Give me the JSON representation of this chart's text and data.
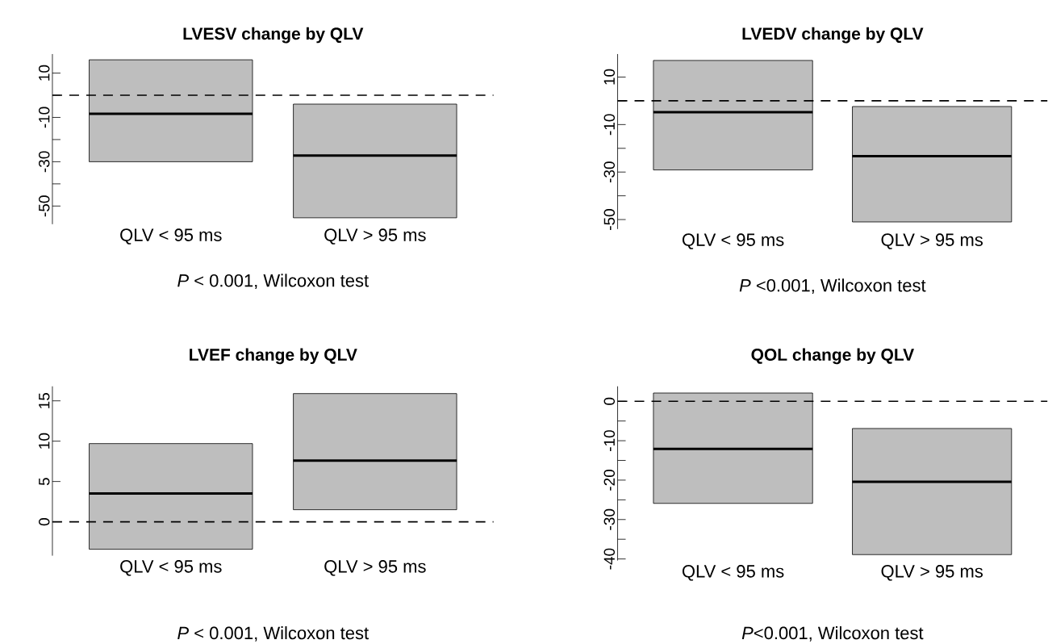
{
  "chart_data": [
    {
      "type": "box",
      "title": "LVESV change by QLV",
      "categories": [
        "QLV < 95 ms",
        "QLV > 95 ms"
      ],
      "color": "#bebebe",
      "boxes": [
        {
          "low": -30,
          "q1": -30,
          "median": -8.4,
          "q3": 16,
          "high": 16
        },
        {
          "low": -55.3,
          "q1": -55.3,
          "median": -27.2,
          "q3": -4,
          "high": -4
        }
      ],
      "ylim": [
        -58.2,
        18.6
      ],
      "yticks": [
        10,
        {
          "value": 0,
          "label": null
        },
        -10,
        {
          "value": -20,
          "label": null
        },
        -30,
        {
          "value": -40,
          "label": null
        },
        -50
      ],
      "ref_lines": [
        {
          "axis": "y",
          "value": 0,
          "line_style": "dashed"
        }
      ],
      "annotations": [
        "*P* < 0.001, Wilcoxon test"
      ]
    },
    {
      "type": "box",
      "title": "LVEDV change by QLV",
      "categories": [
        "QLV < 95 ms",
        "QLV > 95 ms"
      ],
      "color": "#bebebe",
      "boxes": [
        {
          "low": -29.1,
          "q1": -29.1,
          "median": -4.8,
          "q3": 17,
          "high": 17
        },
        {
          "low": -51,
          "q1": -51,
          "median": -23.3,
          "q3": -2.4,
          "high": -2.4
        }
      ],
      "ylim": [
        -54,
        19.7
      ],
      "yticks": [
        10,
        {
          "value": 0,
          "label": null
        },
        -10,
        {
          "value": -20,
          "label": null
        },
        -30,
        {
          "value": -40,
          "label": null
        },
        -50
      ],
      "ref_lines": [
        {
          "axis": "y",
          "value": 0,
          "line_style": "dashed"
        }
      ],
      "annotations": [
        "*P* <0.001, Wilcoxon test"
      ]
    },
    {
      "type": "box",
      "title": "LVEF change by QLV",
      "categories": [
        "QLV < 95 ms",
        "QLV > 95 ms"
      ],
      "color": "#bebebe",
      "boxes": [
        {
          "low": -3.4,
          "q1": -3.4,
          "median": 3.5,
          "q3": 9.7,
          "high": 9.7
        },
        {
          "low": 1.5,
          "q1": 1.5,
          "median": 7.6,
          "q3": 15.9,
          "high": 15.9
        }
      ],
      "ylim": [
        -4.2,
        16.8
      ],
      "yticks": [
        15,
        10,
        5,
        0
      ],
      "ref_lines": [
        {
          "axis": "y",
          "value": 0,
          "line_style": "dashed"
        }
      ],
      "annotations": [
        "*P* < 0.001, Wilcoxon test"
      ]
    },
    {
      "type": "box",
      "title": "QOL change by QLV",
      "categories": [
        "QLV < 95 ms",
        "QLV > 95 ms"
      ],
      "color": "#bebebe",
      "boxes": [
        {
          "low": -25.9,
          "q1": -25.9,
          "median": -12.1,
          "q3": 2.1,
          "high": 2.1
        },
        {
          "low": -38.9,
          "q1": -38.9,
          "median": -20.4,
          "q3": -6.9,
          "high": -6.9
        }
      ],
      "ylim": [
        -40.4,
        3.8
      ],
      "yticks": [
        0,
        {
          "value": -5,
          "label": null
        },
        -10,
        {
          "value": -15,
          "label": null
        },
        -20,
        {
          "value": -25,
          "label": null
        },
        -30,
        {
          "value": -35,
          "label": null
        },
        -40
      ],
      "ref_lines": [
        {
          "axis": "y",
          "value": 0,
          "line_style": "dashed"
        }
      ],
      "annotations": [
        "*P*<0.001, Wilcoxon test"
      ]
    }
  ]
}
